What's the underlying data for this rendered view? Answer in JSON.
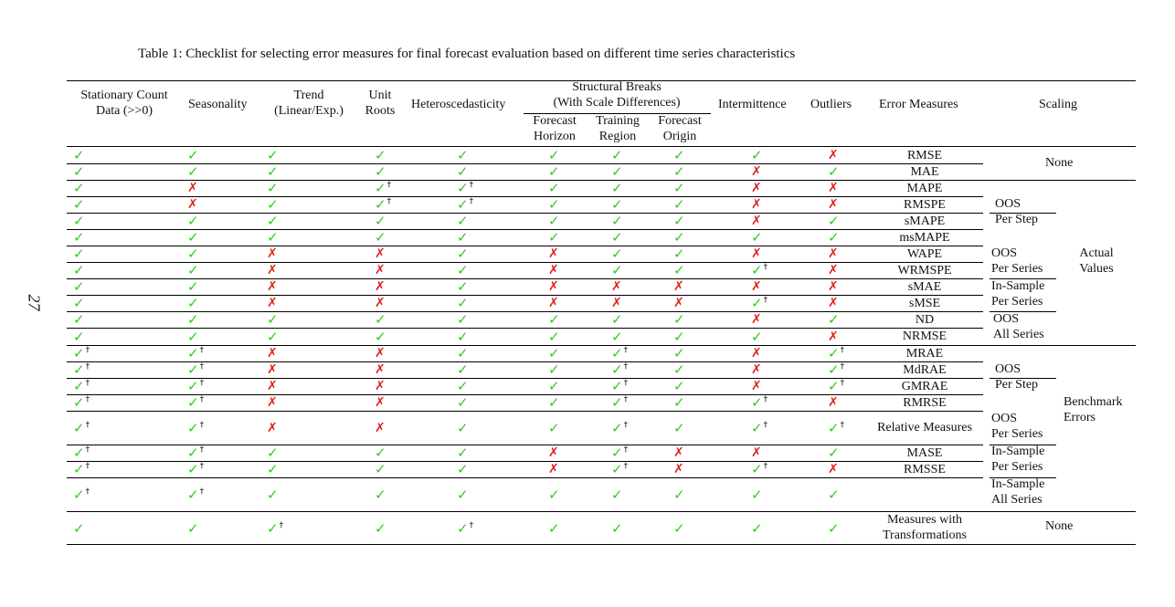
{
  "page_number": "27",
  "caption": "Table 1: Checklist for selecting error measures for final forecast evaluation based on different time series characteristics",
  "headers": {
    "stationary": [
      "Stationary Count",
      "Data (>>0)"
    ],
    "seasonality": "Seasonality",
    "trend": [
      "Trend",
      "(Linear/Exp.)"
    ],
    "unit_roots": [
      "Unit",
      "Roots"
    ],
    "heteroscedasticity": "Heteroscedasticity",
    "structural_breaks": [
      "Structural Breaks",
      "(With Scale Differences)"
    ],
    "sb_sub": [
      [
        "Forecast",
        "Horizon"
      ],
      [
        "Training",
        "Region"
      ],
      [
        "Forecast",
        "Origin"
      ]
    ],
    "intermittence": "Intermittence",
    "outliers": "Outliers",
    "error_measures": "Error Measures",
    "scaling": "Scaling"
  },
  "marks": {
    "ok": "✓",
    "no": "✗",
    "dagger": "†"
  },
  "colors": {
    "ok": "#2ecc1a",
    "no": "#e0201a"
  },
  "rows": [
    {
      "measure": "RMSE",
      "cells": [
        "Y",
        "Y",
        "Y",
        "Y",
        "Y",
        "Y",
        "Y",
        "Y",
        "Y",
        "N"
      ]
    },
    {
      "measure": "MAE",
      "cells": [
        "Y",
        "Y",
        "Y",
        "Y",
        "Y",
        "Y",
        "Y",
        "Y",
        "N",
        "Y"
      ]
    },
    {
      "measure": "MAPE",
      "cells": [
        "Y",
        "N",
        "Y",
        "Y†",
        "Y†",
        "Y",
        "Y",
        "Y",
        "N",
        "N"
      ]
    },
    {
      "measure": "RMSPE",
      "cells": [
        "Y",
        "N",
        "Y",
        "Y†",
        "Y†",
        "Y",
        "Y",
        "Y",
        "N",
        "N"
      ]
    },
    {
      "measure": "sMAPE",
      "cells": [
        "Y",
        "Y",
        "Y",
        "Y",
        "Y",
        "Y",
        "Y",
        "Y",
        "N",
        "Y"
      ]
    },
    {
      "measure": "msMAPE",
      "cells": [
        "Y",
        "Y",
        "Y",
        "Y",
        "Y",
        "Y",
        "Y",
        "Y",
        "Y",
        "Y"
      ]
    },
    {
      "measure": "WAPE",
      "cells": [
        "Y",
        "Y",
        "N",
        "N",
        "Y",
        "N",
        "Y",
        "Y",
        "N",
        "N"
      ]
    },
    {
      "measure": "WRMSPE",
      "cells": [
        "Y",
        "Y",
        "N",
        "N",
        "Y",
        "N",
        "Y",
        "Y",
        "Y†",
        "N"
      ]
    },
    {
      "measure": "sMAE",
      "cells": [
        "Y",
        "Y",
        "N",
        "N",
        "Y",
        "N",
        "N",
        "N",
        "N",
        "N"
      ]
    },
    {
      "measure": "sMSE",
      "cells": [
        "Y",
        "Y",
        "N",
        "N",
        "Y",
        "N",
        "N",
        "N",
        "Y†",
        "N"
      ]
    },
    {
      "measure": "ND",
      "cells": [
        "Y",
        "Y",
        "Y",
        "Y",
        "Y",
        "Y",
        "Y",
        "Y",
        "N",
        "Y"
      ]
    },
    {
      "measure": "NRMSE",
      "cells": [
        "Y",
        "Y",
        "Y",
        "Y",
        "Y",
        "Y",
        "Y",
        "Y",
        "Y",
        "N"
      ]
    },
    {
      "measure": "MRAE",
      "cells": [
        "Y†",
        "Y†",
        "N",
        "N",
        "Y",
        "Y",
        "Y†",
        "Y",
        "N",
        "Y†"
      ]
    },
    {
      "measure": "MdRAE",
      "cells": [
        "Y†",
        "Y†",
        "N",
        "N",
        "Y",
        "Y",
        "Y†",
        "Y",
        "N",
        "Y†"
      ]
    },
    {
      "measure": "GMRAE",
      "cells": [
        "Y†",
        "Y†",
        "N",
        "N",
        "Y",
        "Y",
        "Y†",
        "Y",
        "N",
        "Y†"
      ]
    },
    {
      "measure": "RMRSE",
      "cells": [
        "Y†",
        "Y†",
        "N",
        "N",
        "Y",
        "Y",
        "Y†",
        "Y",
        "Y†",
        "N"
      ]
    },
    {
      "measure": "Relative Measures",
      "cells": [
        "Y†",
        "Y†",
        "N",
        "N",
        "Y",
        "Y",
        "Y†",
        "Y",
        "Y†",
        "Y†"
      ]
    },
    {
      "measure": "MASE",
      "cells": [
        "Y†",
        "Y†",
        "Y",
        "Y",
        "Y",
        "N",
        "Y†",
        "N",
        "N",
        "Y"
      ]
    },
    {
      "measure": "RMSSE",
      "cells": [
        "Y†",
        "Y†",
        "Y",
        "Y",
        "Y",
        "N",
        "Y†",
        "N",
        "Y†",
        "N"
      ]
    },
    {
      "measure": "",
      "cells": [
        "Y†",
        "Y†",
        "Y",
        "Y",
        "Y",
        "Y",
        "Y",
        "Y",
        "Y",
        "Y"
      ]
    },
    {
      "measure": [
        "Measures with",
        "Transformations"
      ],
      "cells": [
        "Y",
        "Y",
        "Y†",
        "Y",
        "Y†",
        "Y",
        "Y",
        "Y",
        "Y",
        "Y"
      ]
    }
  ],
  "scaling_groups": {
    "none_top": "None",
    "oos_per_step": [
      "OOS",
      "Per Step"
    ],
    "oos_per_series": [
      "OOS",
      "Per Series"
    ],
    "insample_per_series": [
      "In-Sample",
      "Per Series"
    ],
    "oos_all_series": [
      "OOS",
      "All Series"
    ],
    "actual_values": [
      "Actual",
      "Values"
    ],
    "oos_per_step_b": [
      "OOS",
      "Per Step"
    ],
    "oos_per_series_b": [
      "OOS",
      "Per Series"
    ],
    "insample_per_series_b": [
      "In-Sample",
      "Per Series"
    ],
    "insample_all_series_b": [
      "In-Sample",
      "All Series"
    ],
    "benchmark_errors": [
      "Benchmark",
      "Errors"
    ],
    "none_bottom": "None"
  }
}
